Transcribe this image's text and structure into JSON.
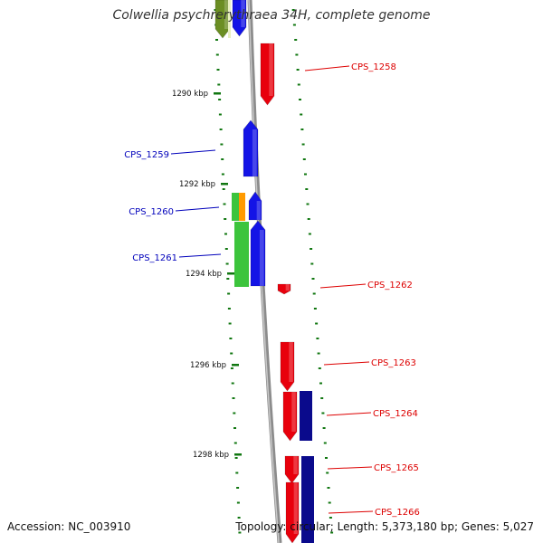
{
  "title": "Colwellia psychrerythraea 34H, complete genome",
  "footer": {
    "accession_label": "Accession:",
    "accession_value": "NC_003910",
    "topology_label": "Topology:",
    "topology_value": "circular",
    "length_label": "Length:",
    "length_value": "5,373,180 bp",
    "genes_label": "Genes:",
    "genes_value": "5,027"
  },
  "colors": {
    "backbone": "#8c8c8c",
    "tick": "#117711",
    "forward_red": "#e8000c",
    "reverse_blue": "#1414e6",
    "navy": "#0a0a8c",
    "green": "#3cc43c",
    "olive": "#6b8e23",
    "orange": "#ff9a00",
    "label_red": "#dd0000",
    "label_blue": "#0000bb"
  },
  "kbp_labels": [
    {
      "text": "1290 kbp"
    },
    {
      "text": "1292 kbp"
    },
    {
      "text": "1294 kbp"
    },
    {
      "text": "1296 kbp"
    },
    {
      "text": "1298 kbp"
    }
  ],
  "gene_labels": [
    {
      "text": "CPS_1258",
      "color": "red"
    },
    {
      "text": "CPS_1259",
      "color": "blue"
    },
    {
      "text": "CPS_1260",
      "color": "blue"
    },
    {
      "text": "CPS_1261",
      "color": "blue"
    },
    {
      "text": "CPS_1262",
      "color": "red"
    },
    {
      "text": "CPS_1263",
      "color": "red"
    },
    {
      "text": "CPS_1264",
      "color": "red"
    },
    {
      "text": "CPS_1265",
      "color": "red"
    },
    {
      "text": "CPS_1266",
      "color": "red"
    }
  ]
}
